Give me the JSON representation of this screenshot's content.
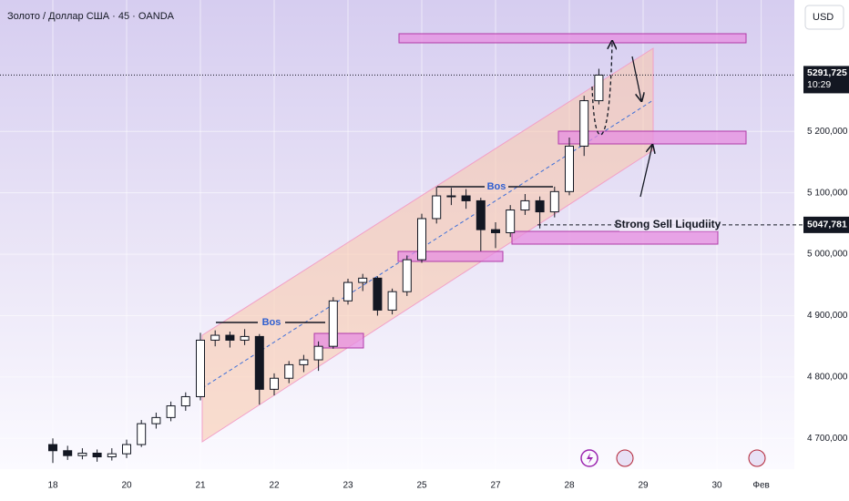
{
  "header": {
    "symbol": "Золото / Доллар США · 45 · OANDA",
    "currency": "USD"
  },
  "chart_data": {
    "type": "candlestick",
    "categories": [
      "18",
      null,
      null,
      null,
      null,
      "20",
      null,
      null,
      null,
      null,
      "21",
      null,
      null,
      null,
      null,
      "22",
      null,
      null,
      null,
      null,
      "23",
      null,
      null,
      null,
      null,
      "25",
      null,
      null,
      null,
      null,
      "27",
      null,
      null,
      null,
      null,
      "28",
      null,
      null,
      null,
      null,
      "29",
      null,
      null,
      null,
      null,
      "30",
      null,
      null,
      "Фев",
      null,
      null
    ],
    "open": [
      4690,
      4680,
      4672,
      4676,
      4670,
      4675,
      4690,
      4724,
      4734,
      4753,
      4768,
      4860,
      4868,
      4860,
      4866,
      4780,
      4798,
      4820,
      4828,
      4850,
      4924,
      4954,
      4961,
      4909,
      4939,
      4991,
      5058,
      5095,
      5095,
      5087,
      5040,
      5035,
      5072,
      5087,
      5069,
      5102,
      5176,
      5250,
      null,
      null,
      null,
      null,
      null,
      null,
      null,
      null,
      null,
      null,
      null,
      null,
      null
    ],
    "high": [
      4700,
      4688,
      4684,
      4682,
      4684,
      4698,
      4730,
      4742,
      4760,
      4775,
      4872,
      4876,
      4874,
      4878,
      4870,
      4806,
      4826,
      4836,
      4858,
      4930,
      4960,
      4968,
      4964,
      4944,
      4998,
      5066,
      5110,
      5108,
      5106,
      5092,
      5052,
      5080,
      5098,
      5094,
      5110,
      5190,
      5258,
      5302,
      null,
      null,
      null,
      null,
      null,
      null,
      null,
      null,
      null,
      null,
      null,
      null,
      null
    ],
    "low": [
      4660,
      4665,
      4666,
      4662,
      4664,
      4668,
      4686,
      4716,
      4728,
      4745,
      4762,
      4850,
      4848,
      4852,
      4755,
      4770,
      4790,
      4808,
      4810,
      4846,
      4918,
      4940,
      4900,
      4902,
      4932,
      4986,
      5050,
      5080,
      5074,
      5005,
      5010,
      5028,
      5064,
      5042,
      5060,
      5096,
      5160,
      5244,
      null,
      null,
      null,
      null,
      null,
      null,
      null,
      null,
      null,
      null,
      null,
      null,
      null
    ],
    "close": [
      4680,
      4672,
      4676,
      4670,
      4675,
      4690,
      4724,
      4734,
      4753,
      4768,
      4860,
      4868,
      4860,
      4866,
      4780,
      4798,
      4820,
      4828,
      4850,
      4924,
      4954,
      4961,
      4909,
      4939,
      4991,
      5058,
      5095,
      5095,
      5087,
      5040,
      5035,
      5072,
      5087,
      5069,
      5102,
      5176,
      5250,
      5291.725,
      null,
      null,
      null,
      null,
      null,
      null,
      null,
      null,
      null,
      null,
      null,
      null,
      null
    ],
    "up_color": "#ffffff",
    "down_color": "#131722",
    "ylim": [
      4650,
      5414
    ],
    "yticks": [
      {
        "value": 4700,
        "label": "4 700,000"
      },
      {
        "value": 4800,
        "label": "4 800,000"
      },
      {
        "value": 4900,
        "label": "4 900,000"
      },
      {
        "value": 5000,
        "label": "5 000,000"
      },
      {
        "value": 5100,
        "label": "5 100,000"
      },
      {
        "value": 5200,
        "label": "5 200,000"
      }
    ],
    "grid": true,
    "last_price": {
      "value": 5291.725,
      "label": "5291,725"
    },
    "countdown": "10:29",
    "level": {
      "value": 5047.781,
      "label": "5047,781"
    },
    "annotations": [
      "Bos",
      "Bos",
      "Strong Sell Liqudiity"
    ]
  }
}
